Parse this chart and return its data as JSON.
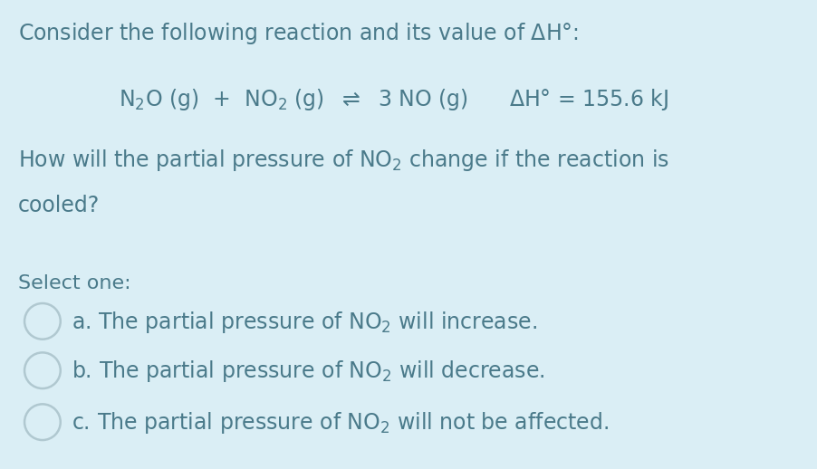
{
  "background_color": "#daeef5",
  "text_color": "#4a7a8a",
  "font_size_main": 17,
  "font_size_reaction": 17,
  "font_size_options": 17,
  "font_size_select": 16,
  "circle_edge_color": "#b0c8d0",
  "circle_fill_color": "#daeef5",
  "font_family": "DejaVu Sans"
}
